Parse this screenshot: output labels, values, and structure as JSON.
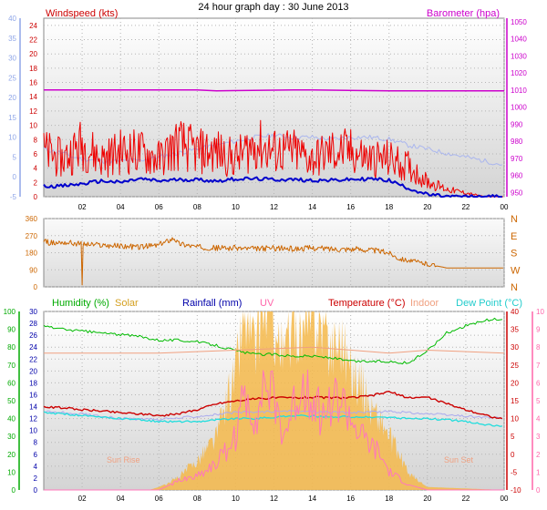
{
  "page_title": "24 hour graph day : 30 June 2013",
  "chart_data": [
    {
      "id": "wind-baro",
      "type": "line",
      "labels": {
        "left": "Windspeed (kts)",
        "right": "Barometer (hpa)"
      },
      "left_axis": {
        "ticks": [
          0,
          2,
          4,
          6,
          8,
          10,
          12,
          14,
          16,
          18,
          20,
          22,
          24
        ],
        "ylim": [
          0,
          25
        ],
        "color": "#cc0000"
      },
      "outer_left_axis": {
        "ticks": [
          -5,
          0,
          5,
          10,
          15,
          20,
          25,
          30,
          35,
          40
        ],
        "color": "#8fa6e8"
      },
      "right_axis": {
        "ticks": [
          950,
          960,
          970,
          980,
          990,
          1000,
          1010,
          1020,
          1030,
          1040,
          1050
        ],
        "ylim": [
          947.5,
          1052
        ],
        "color": "#cc00cc"
      },
      "x_axis": {
        "ticks": [
          "02",
          "04",
          "06",
          "08",
          "10",
          "12",
          "14",
          "16",
          "18",
          "20",
          "22",
          "00"
        ],
        "range_hours": [
          0,
          24
        ]
      },
      "series": [
        {
          "color": "#cc00cc",
          "x": [
            0,
            8,
            9,
            13,
            14,
            18,
            21,
            24
          ],
          "y": [
            1010,
            1010,
            1009.5,
            1010,
            1010,
            1009.5,
            1009.5,
            1009.5
          ]
        },
        {
          "color": "#aab6ee",
          "x": [
            0,
            1,
            1.5,
            2,
            3,
            4,
            5,
            6,
            7,
            8,
            9,
            10,
            11,
            12,
            13,
            14,
            15,
            16,
            17,
            18,
            19,
            20,
            21,
            22,
            23,
            24
          ],
          "y": [
            7,
            6,
            5,
            4.5,
            4,
            4,
            4.2,
            5,
            6,
            7,
            8,
            9,
            10,
            10.5,
            10,
            10,
            9.5,
            10,
            10,
            9.5,
            8,
            7,
            6,
            5,
            4,
            3
          ]
        },
        {
          "color": "#ee0000",
          "x": [
            0,
            1,
            2,
            3,
            4,
            5,
            6,
            7,
            8,
            9,
            10,
            11,
            12,
            13,
            14,
            15,
            16,
            17,
            18,
            19,
            19.5,
            20,
            21,
            22,
            23,
            24
          ],
          "y": [
            6,
            5,
            7,
            5,
            6,
            6,
            5,
            7,
            6,
            6,
            5,
            7,
            6,
            6,
            5,
            6,
            6,
            5,
            5,
            4,
            3,
            2,
            1,
            0.5,
            0,
            0
          ]
        },
        {
          "color": "#0000cc",
          "x": [
            0,
            1,
            2,
            3,
            4,
            5,
            6,
            7,
            8,
            9,
            10,
            11,
            12,
            13,
            14,
            15,
            16,
            17,
            18,
            19,
            20,
            21,
            22,
            23,
            24
          ],
          "y": [
            1.5,
            1.5,
            1.8,
            2.2,
            2,
            2.5,
            2.2,
            2.4,
            2.4,
            2.2,
            2.5,
            2.5,
            2.4,
            2.4,
            2.3,
            2.3,
            2.4,
            2.5,
            2.3,
            1.2,
            0.3,
            0,
            0,
            0,
            0
          ]
        }
      ]
    },
    {
      "id": "direction",
      "type": "line",
      "left_axis": {
        "ticks": [
          0,
          90,
          180,
          270,
          360
        ],
        "ylim": [
          0,
          360
        ]
      },
      "right_axis": {
        "ticks": [
          "N",
          "W",
          "S",
          "E",
          "N"
        ]
      },
      "x_axis": {
        "range_hours": [
          0,
          24
        ]
      },
      "series": [
        {
          "color": "#cc6600",
          "x": [
            0,
            0.5,
            1,
            2,
            3,
            4,
            5,
            6,
            6.8,
            7,
            8,
            9,
            10,
            11,
            12,
            13,
            14,
            15,
            16,
            17,
            18,
            18.5,
            19,
            20,
            20.5,
            21,
            22,
            23,
            24
          ],
          "y": [
            240,
            230,
            235,
            225,
            220,
            215,
            210,
            220,
            260,
            230,
            210,
            205,
            205,
            200,
            205,
            200,
            205,
            200,
            200,
            195,
            180,
            150,
            140,
            120,
            110,
            100,
            100,
            100,
            100
          ]
        }
      ]
    },
    {
      "id": "climate",
      "type": "line",
      "labels": {
        "humidity": "Humidity (%)",
        "solar": "Solar",
        "rainfall": "Rainfall (mm)",
        "uv": "UV",
        "temperature": "Temperature (°C)",
        "indoor": "Indoor",
        "dewpoint": "Dew Point (°C)"
      },
      "annotations": [
        "Sun Rise",
        "Sun Set"
      ],
      "humidity_axis": {
        "ticks": [
          0,
          10,
          20,
          30,
          40,
          50,
          60,
          70,
          80,
          90,
          100
        ],
        "ylim": [
          0,
          100
        ],
        "color": "#00aa00"
      },
      "rainfall_axis": {
        "ticks": [
          0,
          2,
          4,
          6,
          8,
          10,
          12,
          14,
          16,
          18,
          20,
          22,
          24,
          26,
          28,
          30
        ],
        "ylim": [
          0,
          30
        ]
      },
      "temperature_axis": {
        "ticks": [
          -10,
          -5,
          0,
          5,
          10,
          15,
          20,
          25,
          30,
          35,
          40
        ],
        "ylim": [
          -10,
          40
        ],
        "color": "#cc0000"
      },
      "uv_axis": {
        "ticks": [
          0,
          1,
          2,
          3,
          4,
          5,
          6,
          7,
          8,
          9,
          10
        ],
        "ylim": [
          0,
          10
        ],
        "color": "#ff66aa"
      },
      "x_axis": {
        "ticks": [
          "02",
          "04",
          "06",
          "08",
          "10",
          "12",
          "14",
          "16",
          "18",
          "20",
          "22",
          "00"
        ],
        "range_hours": [
          0,
          24
        ]
      },
      "series": [
        {
          "color": "#00bb00",
          "x": [
            0,
            1,
            2,
            3,
            4,
            5,
            6,
            7,
            8,
            9,
            10,
            11,
            12,
            13,
            14,
            15,
            16,
            17,
            18,
            19,
            20,
            21,
            22,
            23,
            24
          ],
          "y": [
            92,
            90,
            89,
            88,
            87,
            86,
            84,
            84,
            83,
            81,
            78,
            76,
            76,
            75,
            75,
            74,
            72,
            72,
            72,
            71,
            78,
            88,
            92,
            95,
            96
          ]
        },
        {
          "color": "#f0a080",
          "x": [
            0,
            6,
            10,
            14,
            18,
            20,
            24
          ],
          "y": [
            23,
            23,
            23.5,
            24,
            23,
            23.5,
            23
          ]
        },
        {
          "color": "#cc0000",
          "x": [
            0,
            1,
            2,
            3,
            4,
            5,
            6,
            7,
            8,
            9,
            10,
            11,
            12,
            13,
            14,
            15,
            16,
            17,
            18,
            19,
            20,
            21,
            22,
            23,
            24
          ],
          "y": [
            14,
            13.8,
            13.5,
            13.3,
            13,
            12.8,
            12.5,
            12.8,
            13.5,
            14.5,
            15,
            15.3,
            15.5,
            15.5,
            15.6,
            15.5,
            15.5,
            15.8,
            16.5,
            15.5,
            15.6,
            14.5,
            13.5,
            12.6,
            11.8
          ]
        },
        {
          "color": "#aaaaee",
          "x": [
            0,
            2,
            4,
            6,
            8,
            10,
            12,
            14,
            16,
            18,
            20,
            22,
            24
          ],
          "y": [
            13.2,
            12.8,
            12,
            11.8,
            12.4,
            13,
            13.2,
            13.2,
            13,
            13.2,
            12.8,
            12.4,
            12
          ]
        },
        {
          "color": "#22dddd",
          "x": [
            0,
            1,
            2,
            3,
            4,
            5,
            6,
            7,
            8,
            9,
            10,
            11,
            12,
            13,
            14,
            15,
            16,
            17,
            18,
            19,
            20,
            21,
            22,
            23,
            24
          ],
          "y": [
            13,
            12.8,
            12.5,
            12.2,
            12,
            11.8,
            11.5,
            11.5,
            11.5,
            11.8,
            12,
            12,
            12.2,
            12.5,
            12.4,
            12.3,
            12.3,
            12.2,
            12.2,
            12,
            12,
            11.8,
            11.5,
            11,
            10.6
          ]
        },
        {
          "color": "#ff77bb",
          "x": [
            0,
            6,
            7,
            8,
            9,
            10,
            10.5,
            11,
            11.5,
            12,
            12.5,
            13,
            13.5,
            14,
            14.5,
            15,
            15.5,
            16,
            16.5,
            17,
            17.5,
            18,
            19,
            20,
            24
          ],
          "y": [
            0,
            0,
            0.5,
            0.8,
            1.5,
            3,
            5.5,
            4,
            6,
            5,
            3,
            4.5,
            6,
            5.5,
            4,
            5,
            5,
            4,
            3,
            2.5,
            2,
            1,
            0.3,
            0,
            0
          ]
        }
      ],
      "solar": {
        "color": "#f5b94a",
        "x": [
          0,
          5.5,
          6,
          7,
          8,
          9,
          10,
          10.5,
          11,
          11.5,
          12,
          12.5,
          13,
          13.5,
          14,
          14.5,
          15,
          15.5,
          16,
          16.5,
          17,
          17.5,
          18,
          18.5,
          19,
          19.5,
          20,
          24
        ],
        "y": [
          0,
          0,
          0.5,
          2,
          5,
          9,
          20,
          30,
          23,
          32,
          28,
          22,
          29,
          26,
          30,
          28,
          24,
          26,
          20,
          18,
          14,
          12,
          9,
          6,
          3,
          1.5,
          0.5,
          0
        ]
      }
    }
  ]
}
